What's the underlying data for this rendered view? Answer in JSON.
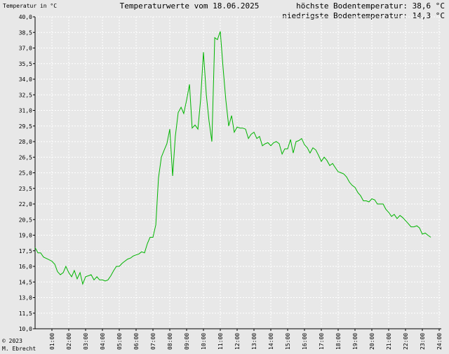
{
  "chart_data": {
    "type": "line",
    "title": "Temperaturwerte vom 18.06.2025",
    "ylabel": "Temperatur in °C",
    "max_label": "höchste Bodentemperatur: 38,6 °C",
    "min_label": "niedrigste Bodentemperatur: 14,3 °C",
    "copyright_line1": "© 2023",
    "copyright_line2": "M. Ebrecht",
    "ylim": [
      10.0,
      40.0
    ],
    "xlim": [
      0,
      24
    ],
    "y_ticks": [
      "10,0",
      "11,5",
      "13,0",
      "14,5",
      "16,0",
      "17,5",
      "19,0",
      "20,5",
      "22,0",
      "23,5",
      "25,0",
      "26,5",
      "28,0",
      "29,5",
      "31,0",
      "32,5",
      "34,0",
      "35,5",
      "37,0",
      "38,5",
      "40,0"
    ],
    "x_ticks": [
      "01:00",
      "02:00",
      "03:00",
      "04:00",
      "05:00",
      "06:00",
      "07:00",
      "08:00",
      "09:00",
      "10:00",
      "11:00",
      "12:00",
      "13:00",
      "14:00",
      "15:00",
      "16:00",
      "17:00",
      "18:00",
      "19:00",
      "20:00",
      "21:00",
      "22:00",
      "23:00",
      "24:00"
    ],
    "grid": true,
    "line_color": "#00b400",
    "series": [
      {
        "points": [
          [
            0.0,
            17.8
          ],
          [
            0.17,
            17.3
          ],
          [
            0.33,
            17.3
          ],
          [
            0.5,
            16.9
          ],
          [
            0.75,
            16.7
          ],
          [
            1.0,
            16.5
          ],
          [
            1.17,
            16.2
          ],
          [
            1.33,
            15.5
          ],
          [
            1.5,
            15.2
          ],
          [
            1.67,
            15.4
          ],
          [
            1.83,
            16.0
          ],
          [
            2.0,
            15.4
          ],
          [
            2.17,
            15.0
          ],
          [
            2.33,
            15.6
          ],
          [
            2.5,
            14.8
          ],
          [
            2.67,
            15.4
          ],
          [
            2.83,
            14.3
          ],
          [
            3.0,
            15.0
          ],
          [
            3.17,
            15.1
          ],
          [
            3.33,
            15.2
          ],
          [
            3.5,
            14.7
          ],
          [
            3.67,
            15.0
          ],
          [
            3.83,
            14.7
          ],
          [
            4.0,
            14.7
          ],
          [
            4.17,
            14.6
          ],
          [
            4.33,
            14.7
          ],
          [
            4.5,
            15.1
          ],
          [
            4.67,
            15.6
          ],
          [
            4.83,
            16.0
          ],
          [
            5.0,
            16.0
          ],
          [
            5.17,
            16.3
          ],
          [
            5.33,
            16.5
          ],
          [
            5.5,
            16.7
          ],
          [
            5.67,
            16.8
          ],
          [
            5.83,
            17.0
          ],
          [
            6.0,
            17.1
          ],
          [
            6.17,
            17.2
          ],
          [
            6.33,
            17.4
          ],
          [
            6.5,
            17.3
          ],
          [
            6.67,
            18.2
          ],
          [
            6.83,
            18.8
          ],
          [
            7.0,
            18.8
          ],
          [
            7.17,
            20.0
          ],
          [
            7.33,
            24.5
          ],
          [
            7.5,
            26.5
          ],
          [
            7.67,
            27.2
          ],
          [
            7.83,
            27.8
          ],
          [
            8.0,
            29.2
          ],
          [
            8.17,
            24.7
          ],
          [
            8.33,
            28.5
          ],
          [
            8.5,
            30.8
          ],
          [
            8.67,
            31.3
          ],
          [
            8.83,
            30.7
          ],
          [
            9.0,
            32.0
          ],
          [
            9.17,
            33.5
          ],
          [
            9.33,
            29.3
          ],
          [
            9.5,
            29.6
          ],
          [
            9.67,
            29.2
          ],
          [
            9.83,
            32.0
          ],
          [
            10.0,
            36.6
          ],
          [
            10.17,
            32.5
          ],
          [
            10.33,
            30.0
          ],
          [
            10.5,
            28.0
          ],
          [
            10.67,
            38.0
          ],
          [
            10.83,
            37.8
          ],
          [
            11.0,
            38.6
          ],
          [
            11.17,
            35.0
          ],
          [
            11.33,
            32.0
          ],
          [
            11.5,
            29.5
          ],
          [
            11.67,
            30.5
          ],
          [
            11.83,
            28.9
          ],
          [
            12.0,
            29.4
          ],
          [
            12.17,
            29.3
          ],
          [
            12.33,
            29.3
          ],
          [
            12.5,
            29.2
          ],
          [
            12.67,
            28.3
          ],
          [
            12.83,
            28.7
          ],
          [
            13.0,
            28.9
          ],
          [
            13.17,
            28.3
          ],
          [
            13.33,
            28.5
          ],
          [
            13.5,
            27.6
          ],
          [
            13.67,
            27.8
          ],
          [
            13.83,
            27.9
          ],
          [
            14.0,
            27.6
          ],
          [
            14.17,
            27.9
          ],
          [
            14.33,
            28.0
          ],
          [
            14.5,
            27.8
          ],
          [
            14.67,
            26.8
          ],
          [
            14.83,
            27.3
          ],
          [
            15.0,
            27.3
          ],
          [
            15.17,
            28.2
          ],
          [
            15.33,
            26.9
          ],
          [
            15.5,
            28.0
          ],
          [
            15.67,
            28.1
          ],
          [
            15.83,
            28.3
          ],
          [
            16.0,
            27.7
          ],
          [
            16.17,
            27.4
          ],
          [
            16.33,
            26.9
          ],
          [
            16.5,
            27.4
          ],
          [
            16.67,
            27.2
          ],
          [
            16.83,
            26.7
          ],
          [
            17.0,
            26.1
          ],
          [
            17.17,
            26.5
          ],
          [
            17.33,
            26.2
          ],
          [
            17.5,
            25.7
          ],
          [
            17.67,
            25.9
          ],
          [
            17.83,
            25.5
          ],
          [
            18.0,
            25.1
          ],
          [
            18.17,
            25.0
          ],
          [
            18.33,
            24.9
          ],
          [
            18.5,
            24.6
          ],
          [
            18.67,
            24.1
          ],
          [
            18.83,
            23.8
          ],
          [
            19.0,
            23.6
          ],
          [
            19.17,
            23.1
          ],
          [
            19.33,
            22.8
          ],
          [
            19.5,
            22.3
          ],
          [
            19.67,
            22.3
          ],
          [
            19.83,
            22.2
          ],
          [
            20.0,
            22.5
          ],
          [
            20.17,
            22.4
          ],
          [
            20.33,
            22.0
          ],
          [
            20.5,
            22.0
          ],
          [
            20.67,
            22.0
          ],
          [
            20.83,
            21.5
          ],
          [
            21.0,
            21.2
          ],
          [
            21.17,
            20.8
          ],
          [
            21.33,
            21.0
          ],
          [
            21.5,
            20.6
          ],
          [
            21.67,
            20.9
          ],
          [
            21.83,
            20.7
          ],
          [
            22.0,
            20.4
          ],
          [
            22.17,
            20.1
          ],
          [
            22.33,
            19.8
          ],
          [
            22.5,
            19.8
          ],
          [
            22.67,
            19.9
          ],
          [
            22.83,
            19.7
          ],
          [
            23.0,
            19.1
          ],
          [
            23.17,
            19.2
          ],
          [
            23.33,
            19.0
          ],
          [
            23.5,
            18.8
          ]
        ]
      }
    ]
  }
}
